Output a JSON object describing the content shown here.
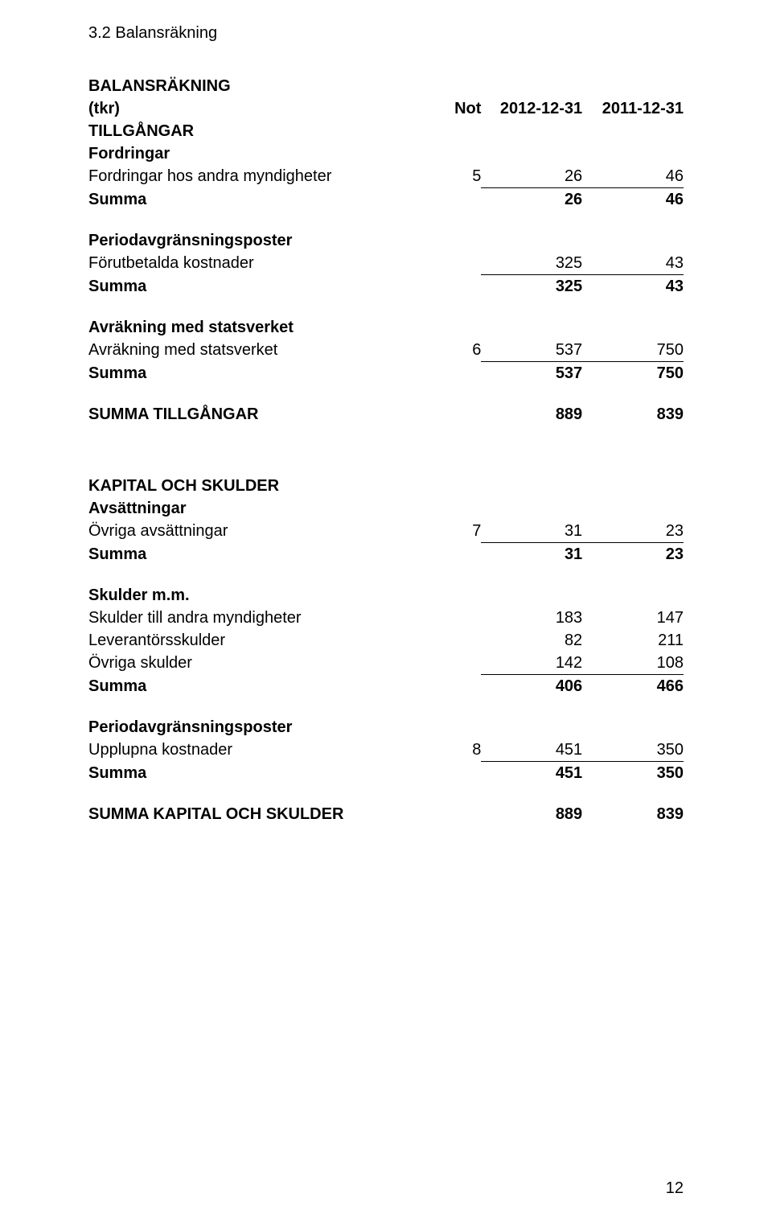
{
  "section_title": "3.2 Balansräkning",
  "heading_main": "BALANSRÄKNING",
  "heading_sub": "(tkr)",
  "col_headers": {
    "not": "Not",
    "c1": "2012-12-31",
    "c2": "2011-12-31"
  },
  "groups": {
    "tillgangar": {
      "title": "TILLGÅNGAR",
      "sections": {
        "fordringar": {
          "title": "Fordringar",
          "rows": [
            {
              "label": "Fordringar hos andra myndigheter",
              "not": "5",
              "c1": "26",
              "c2": "46"
            }
          ],
          "sum": {
            "label": "Summa",
            "c1": "26",
            "c2": "46"
          }
        },
        "periodavg": {
          "title": "Periodavgränsningsposter",
          "rows": [
            {
              "label": "Förutbetalda kostnader",
              "not": "",
              "c1": "325",
              "c2": "43"
            }
          ],
          "sum": {
            "label": "Summa",
            "c1": "325",
            "c2": "43"
          }
        },
        "avrakning": {
          "title": "Avräkning med statsverket",
          "rows": [
            {
              "label": "Avräkning med statsverket",
              "not": "6",
              "c1": "537",
              "c2": "750"
            }
          ],
          "sum": {
            "label": "Summa",
            "c1": "537",
            "c2": "750"
          }
        }
      },
      "total": {
        "label": "SUMMA TILLGÅNGAR",
        "c1": "889",
        "c2": "839"
      }
    },
    "kapital": {
      "title": "KAPITAL OCH SKULDER",
      "sections": {
        "avsattningar": {
          "title": "Avsättningar",
          "rows": [
            {
              "label": "Övriga avsättningar",
              "not": "7",
              "c1": "31",
              "c2": "23"
            }
          ],
          "sum": {
            "label": "Summa",
            "c1": "31",
            "c2": "23"
          }
        },
        "skulder": {
          "title": "Skulder m.m.",
          "rows": [
            {
              "label": "Skulder till andra myndigheter",
              "not": "",
              "c1": "183",
              "c2": "147"
            },
            {
              "label": "Leverantörsskulder",
              "not": "",
              "c1": "82",
              "c2": "211"
            },
            {
              "label": "Övriga skulder",
              "not": "",
              "c1": "142",
              "c2": "108"
            }
          ],
          "sum": {
            "label": "Summa",
            "c1": "406",
            "c2": "466"
          }
        },
        "periodavg2": {
          "title": "Periodavgränsningsposter",
          "rows": [
            {
              "label": "Upplupna kostnader",
              "not": "8",
              "c1": "451",
              "c2": "350"
            }
          ],
          "sum": {
            "label": "Summa",
            "c1": "451",
            "c2": "350"
          }
        }
      },
      "total": {
        "label": "SUMMA KAPITAL OCH SKULDER",
        "c1": "889",
        "c2": "839"
      }
    }
  },
  "page_number": "12"
}
